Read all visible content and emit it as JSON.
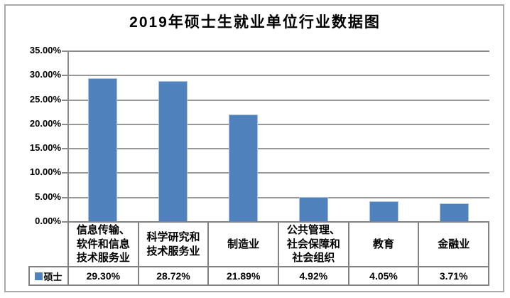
{
  "title": "2019年硕士生就业单位行业数据图",
  "legend": {
    "label": "硕士"
  },
  "axis": {
    "tick_labels": [
      "35.00%",
      "30.00%",
      "25.00%",
      "20.00%",
      "15.00%",
      "10.00%",
      "5.00%",
      "0.00%"
    ]
  },
  "table": {
    "category_display": [
      "信息传输、\n软件和信息\n技术服务业",
      "科学研究和\n技术服务业",
      "制造业",
      "公共管理、\n社会保障和\n社会组织",
      "教育",
      "金融业"
    ],
    "value_labels": [
      "29.30%",
      "28.72%",
      "21.89%",
      "4.92%",
      "4.05%",
      "3.71%"
    ]
  },
  "chart_data": {
    "type": "bar",
    "title": "2019年硕士生就业单位行业数据图",
    "categories": [
      "信息传输、软件和信息技术服务业",
      "科学研究和技术服务业",
      "制造业",
      "公共管理、社会保障和社会组织",
      "教育",
      "金融业"
    ],
    "series": [
      {
        "name": "硕士",
        "values": [
          29.3,
          28.72,
          21.89,
          4.92,
          4.05,
          3.71
        ]
      }
    ],
    "xlabel": "",
    "ylabel": "",
    "ylim": [
      0,
      35
    ],
    "y_tick_step": 5,
    "y_tick_format": "percent_2dp",
    "grid": true,
    "legend_position": "bottom-left-table",
    "colors": {
      "bar_fill": "#4f81bd",
      "bar_edge": "#a9c2de",
      "gridline": "#989898",
      "axis": "#8a8a8a",
      "table_border": "#828282",
      "text": "#000000",
      "chart_border": "#a9a9a9"
    }
  }
}
